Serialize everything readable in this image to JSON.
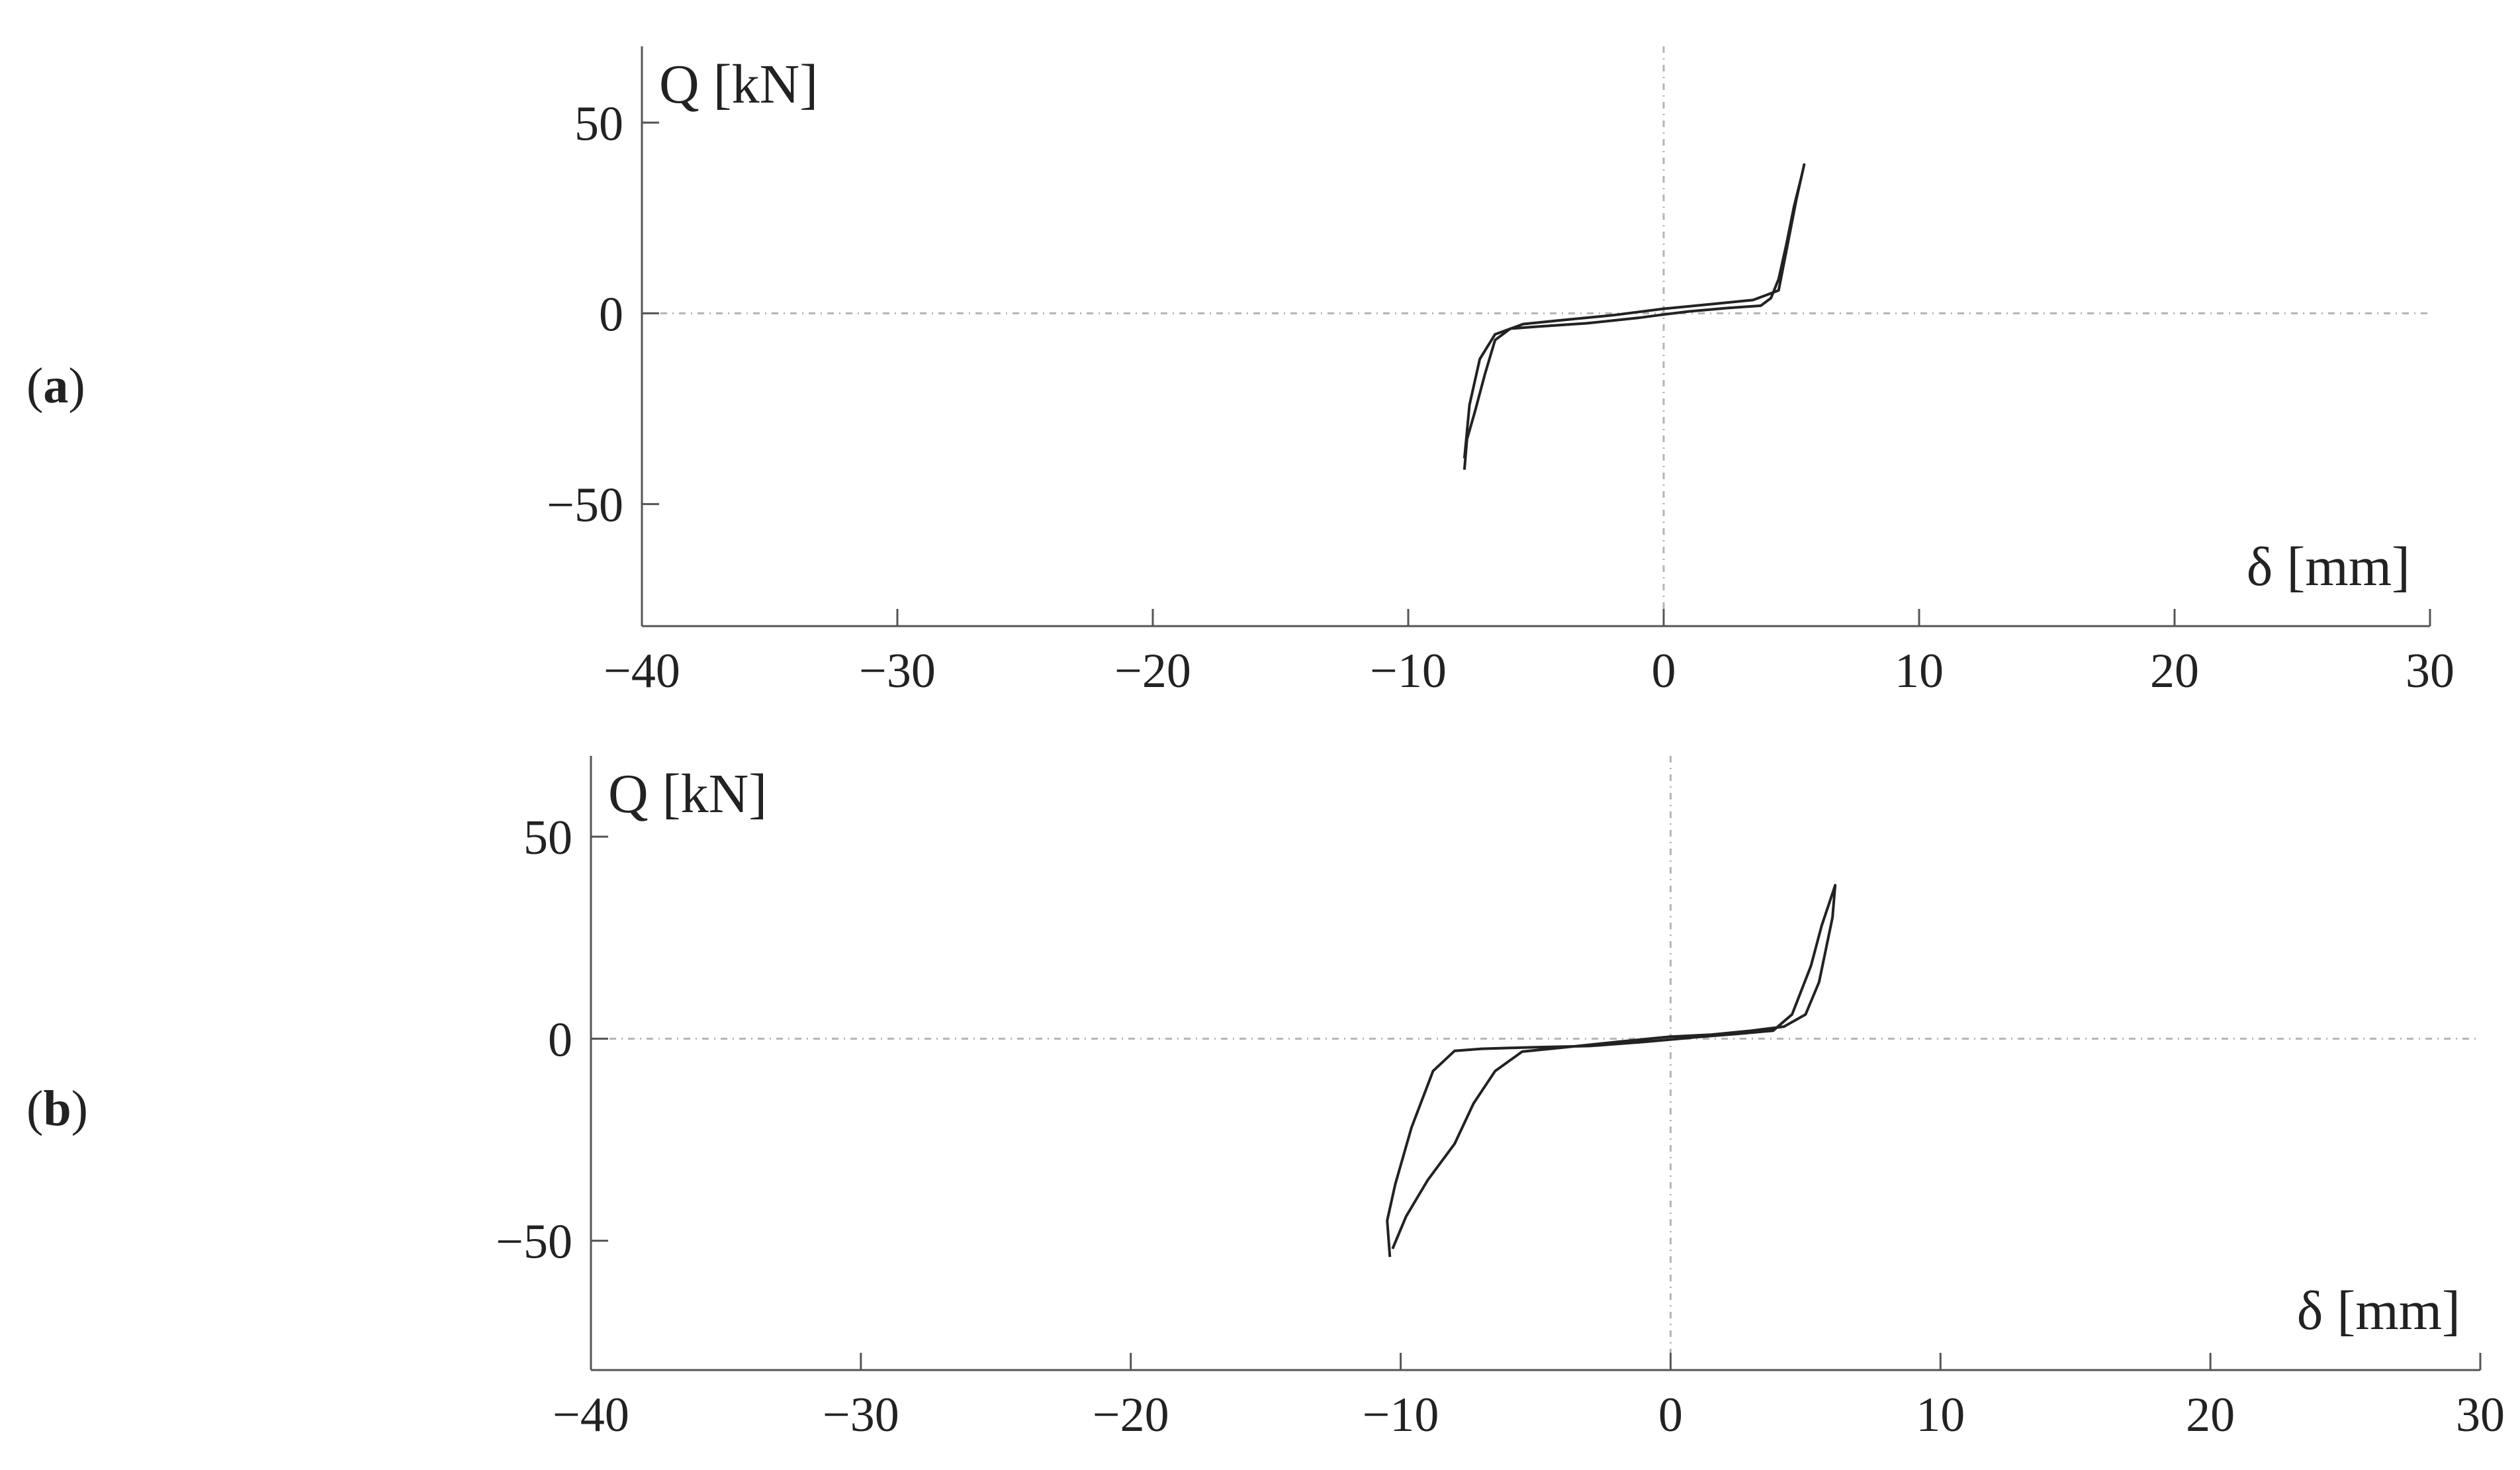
{
  "chart_data": [
    {
      "type": "line",
      "panel_label": "(a)",
      "panel_letter": "a",
      "xlabel": "δ [mm]",
      "ylabel": "Q [kN]",
      "xlim": [
        -40,
        30
      ],
      "ylim": [
        -82,
        70
      ],
      "xticks": [
        -40,
        -30,
        -20,
        -10,
        0,
        10,
        20,
        30
      ],
      "xtick_labels": [
        "−40",
        "−30",
        "−20",
        "−10",
        "0",
        "10",
        "20",
        "30"
      ],
      "yticks": [
        50,
        0,
        -50
      ],
      "ytick_labels": [
        "50",
        "0",
        "−50"
      ],
      "grid": false,
      "zero_lines": true,
      "series": [
        {
          "values_description": "hysteresis loops",
          "color": "#222222",
          "x": [
            -7.8,
            -7.7,
            -7.4,
            -7.0,
            -6.6,
            -6.0,
            -5.0,
            -3.0,
            -1.0,
            0.0,
            1.0,
            2.5,
            3.8,
            4.2,
            4.5,
            4.8,
            5.1,
            5.4,
            5.5,
            5.2,
            4.5,
            3.5,
            2.0,
            0.0,
            -2.0,
            -4.0,
            -5.5,
            -6.6,
            -7.2,
            -7.6,
            -7.8
          ],
          "y": [
            -41,
            -33,
            -26,
            -16,
            -7,
            -4,
            -3.5,
            -2.6,
            -1.2,
            -0.3,
            0.5,
            1.4,
            2.0,
            4.0,
            9.0,
            18.0,
            28.0,
            36.0,
            39.0,
            30.0,
            6.0,
            3.5,
            2.5,
            1.2,
            -0.5,
            -1.8,
            -2.8,
            -5.5,
            -12.0,
            -24.0,
            -38.0
          ]
        }
      ]
    },
    {
      "type": "line",
      "panel_label": "(b)",
      "panel_letter": "b",
      "xlabel": "δ [mm]",
      "ylabel": "Q [kN]",
      "xlim": [
        -40,
        30
      ],
      "ylim": [
        -82,
        70
      ],
      "xticks": [
        -40,
        -30,
        -20,
        -10,
        0,
        10,
        20,
        30
      ],
      "xtick_labels": [
        "−40",
        "−30",
        "−20",
        "−10",
        "0",
        "10",
        "20",
        "30"
      ],
      "yticks": [
        50,
        0,
        -50
      ],
      "ytick_labels": [
        "50",
        "0",
        "−50"
      ],
      "grid": false,
      "zero_lines": true,
      "series": [
        {
          "values_description": "hysteresis loops",
          "color": "#222222",
          "x": [
            -10.4,
            -10.5,
            -10.2,
            -9.6,
            -8.8,
            -8.0,
            -7.0,
            -5.5,
            -3.0,
            -1.0,
            0.0,
            1.0,
            2.5,
            3.8,
            4.5,
            5.2,
            5.6,
            5.9,
            6.1,
            6.0,
            5.5,
            5.0,
            4.2,
            3.0,
            1.5,
            0.0,
            -2.0,
            -4.0,
            -5.5,
            -6.5,
            -7.3,
            -8.0,
            -9.0,
            -9.8,
            -10.3
          ],
          "y": [
            -54,
            -45,
            -36,
            -22,
            -8,
            -3,
            -2.5,
            -2.2,
            -1.8,
            -0.8,
            -0.2,
            0.4,
            1.2,
            2.0,
            6.0,
            18.0,
            28.0,
            34.0,
            38.0,
            30.0,
            14.0,
            6.0,
            3.0,
            2.0,
            1.0,
            0.5,
            -0.8,
            -2.2,
            -3.2,
            -8.0,
            -16.0,
            -26.0,
            -35.0,
            -44.0,
            -52.0
          ]
        }
      ]
    }
  ]
}
